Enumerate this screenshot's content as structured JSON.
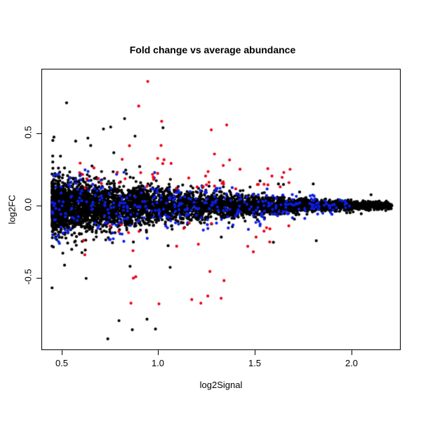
{
  "chart_data": {
    "type": "scatter",
    "title": "Fold change vs average abundance",
    "xlabel": "log2Signal",
    "ylabel": "log2FC",
    "xlim": [
      0.395,
      2.256
    ],
    "ylim": [
      -1.0,
      0.947
    ],
    "x_ticks": [
      0.5,
      1.0,
      1.5,
      2.0
    ],
    "x_tick_labels": [
      "0.5",
      "1.0",
      "1.5",
      "2.0"
    ],
    "y_ticks": [
      0.5,
      0.0,
      -0.5
    ],
    "y_tick_labels": [
      "0.5",
      "0.0",
      "-0.5"
    ],
    "grid": false,
    "legend": "none",
    "background": "#ffffff",
    "axis_color": "#000000",
    "point_radius_px": 2.1,
    "seed": 1337421,
    "series": [
      {
        "name": "all-probes-black",
        "color": "#000000",
        "n": 5200,
        "x_min": 0.45,
        "x_span": 1.76,
        "x_pow": 1.6,
        "envelope": {
          "a": 0.09,
          "b1": 0.45,
          "b2": 0.55,
          "c": 0.004
        },
        "outlier_prob": 0.025,
        "outlier_decay": 1.2,
        "y_clamp": 0.9,
        "description": "dense funnel centered on log2FC=0, half-width ~0.19 at signal 0.5 tapering to ~0.02 at signal 2.2"
      },
      {
        "name": "highlight-blue",
        "color": "#0c1ee8",
        "n": 380,
        "x_min": 0.45,
        "x_span": 1.55,
        "x_pow": 1.4,
        "sd_scale": 1.35,
        "sd_offset": 0.004,
        "clamp_a": 0.28,
        "clamp_decay": 0.5,
        "clamp_c": 0.02,
        "description": "highlighted probes scattered within the band, |log2FC| mostly 0.03-0.2, signal 0.45-2.0"
      },
      {
        "name": "highlight-red",
        "color": "#ec0016",
        "n": 70,
        "x_min": 0.55,
        "x_span": 1.15,
        "x_pow": 0.95,
        "mag_base": 0.11,
        "mag_scale": 0.2,
        "mag_decay": 0.8,
        "pos_fraction": 0.55,
        "y_clamp": 0.88,
        "description": "significant outlier probes with |log2FC| ~0.11-0.88, signal mostly 0.55-1.7"
      }
    ],
    "notable_points": {
      "black": [
        [
          0.754,
          0.544
        ],
        [
          0.826,
          0.602
        ],
        [
          0.88,
          0.481
        ],
        [
          1.025,
          0.539
        ],
        [
          1.623,
          0.15
        ],
        [
          1.649,
          0.146
        ],
        [
          1.819,
          -0.243
        ],
        [
          1.062,
          -0.427
        ],
        [
          0.797,
          -0.796
        ],
        [
          0.866,
          -0.859
        ],
        [
          0.942,
          -0.786
        ],
        [
          0.986,
          -0.854
        ],
        [
          0.739,
          -0.922
        ]
      ],
      "red": [
        [
          0.946,
          0.859
        ],
        [
          0.899,
          0.689
        ],
        [
          1.018,
          0.583
        ],
        [
          1.275,
          0.524
        ],
        [
          1.355,
          0.558
        ],
        [
          1.424,
          0.252
        ],
        [
          1.514,
          0.146
        ],
        [
          0.859,
          -0.675
        ],
        [
          1.004,
          -0.68
        ],
        [
          1.174,
          -0.65
        ],
        [
          1.221,
          -0.675
        ],
        [
          1.257,
          -0.626
        ],
        [
          1.326,
          -0.641
        ],
        [
          1.268,
          -0.456
        ],
        [
          1.341,
          -0.519
        ],
        [
          1.507,
          -0.218
        ],
        [
          1.464,
          -0.282
        ],
        [
          1.493,
          -0.32
        ]
      ]
    }
  }
}
